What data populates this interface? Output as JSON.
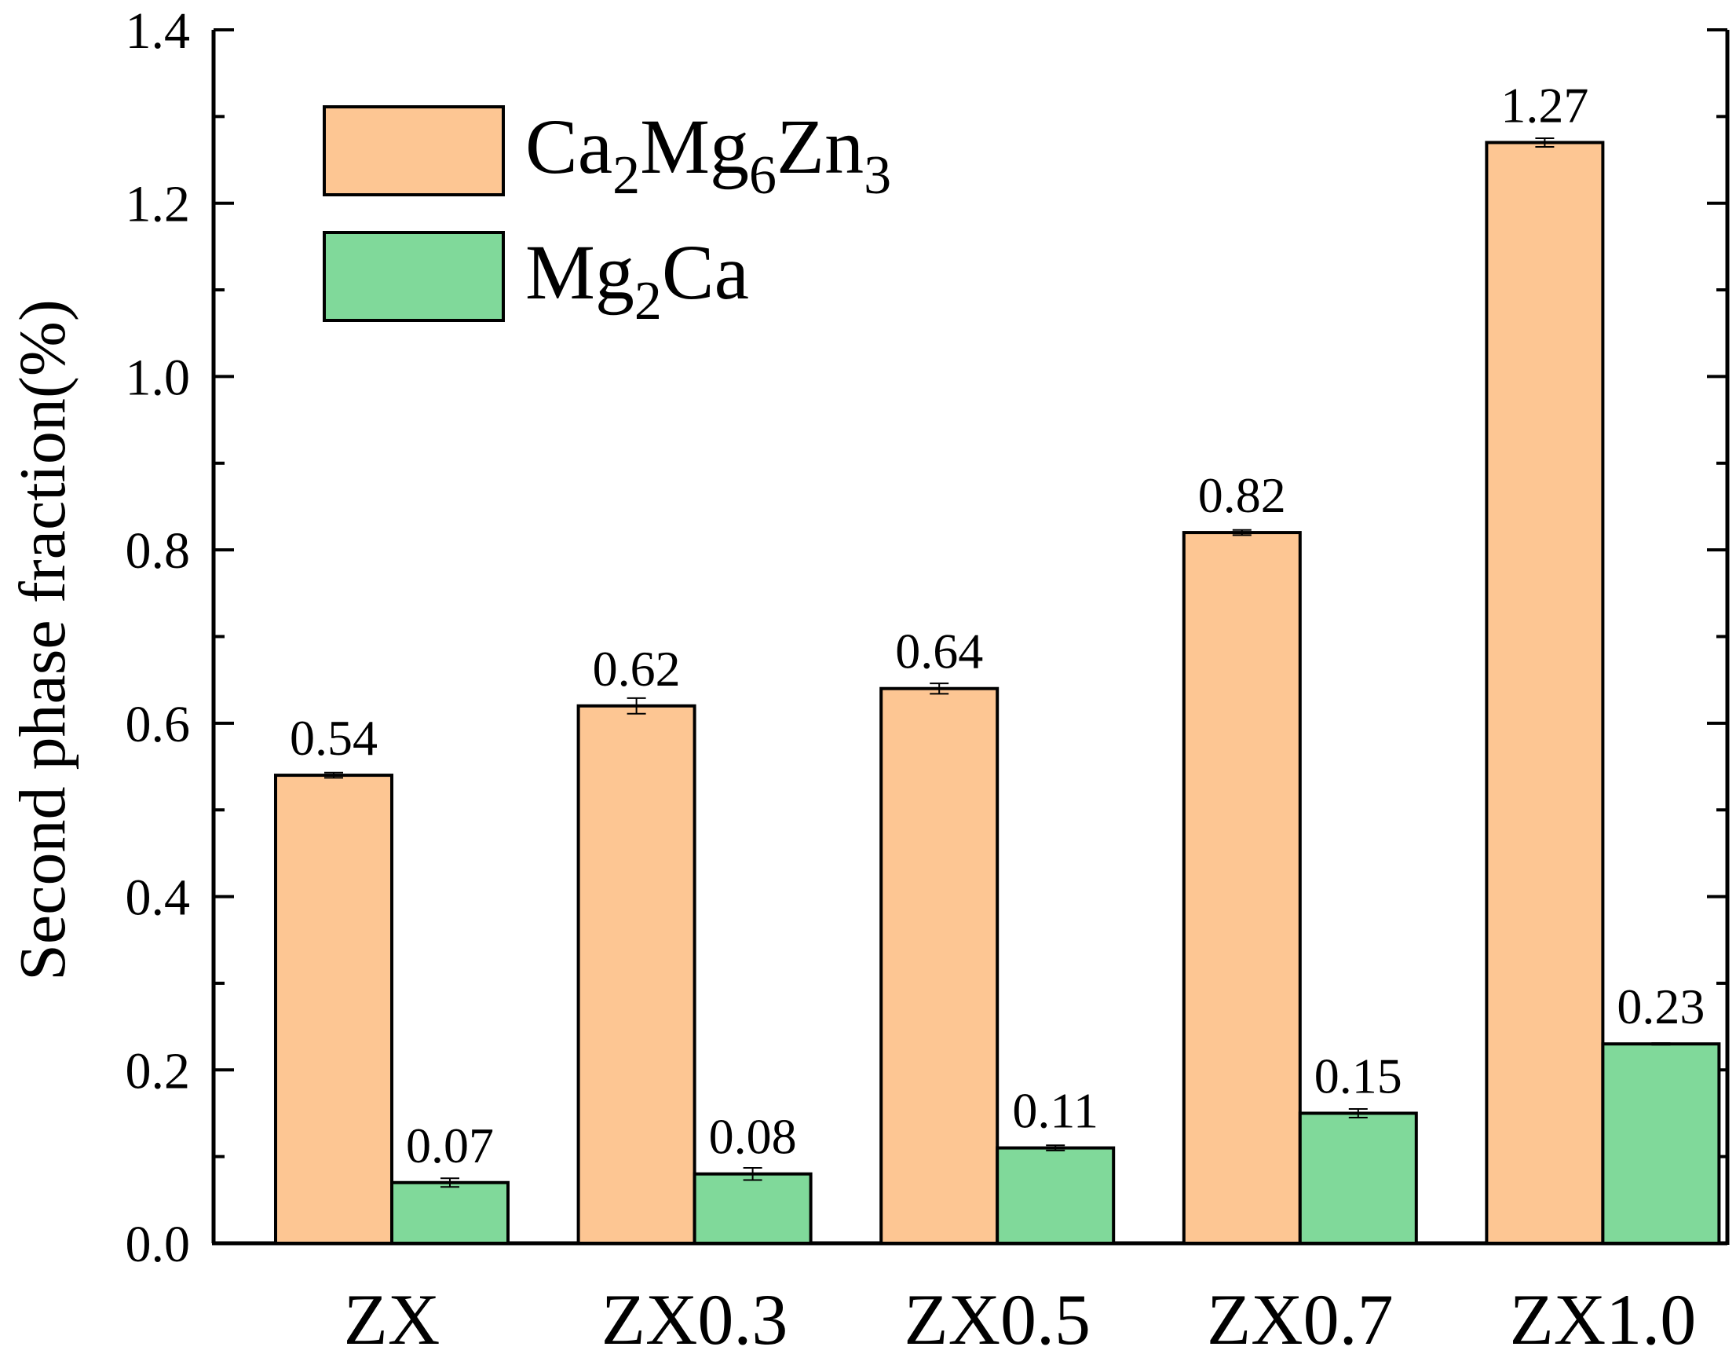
{
  "chart_data": {
    "type": "bar",
    "title": "",
    "xlabel": "",
    "ylabel": "Second phase fraction(%)",
    "ylim": [
      0,
      1.4
    ],
    "yticks": [
      "0.0",
      "0.2",
      "0.4",
      "0.6",
      "0.8",
      "1.0",
      "1.2",
      "1.4"
    ],
    "categories": [
      "ZX",
      "ZX0.3",
      "ZX0.5",
      "ZX0.7",
      "ZX1.0"
    ],
    "legend_position": "top-left",
    "grid": false,
    "series": [
      {
        "name": "Ca2Mg6Zn3",
        "color": "#FDC693",
        "values": [
          0.54,
          0.62,
          0.64,
          0.82,
          1.27
        ],
        "labels": [
          "0.54",
          "0.62",
          "0.64",
          "0.82",
          "1.27"
        ],
        "errors": [
          0.003,
          0.009,
          0.006,
          0.003,
          0.005
        ]
      },
      {
        "name": "Mg2Ca",
        "color": "#80D99A",
        "values": [
          0.07,
          0.08,
          0.11,
          0.15,
          0.23
        ],
        "labels": [
          "0.07",
          "0.08",
          "0.11",
          "0.15",
          "0.23"
        ],
        "errors": [
          0.005,
          0.007,
          0.003,
          0.005,
          0.001
        ]
      }
    ],
    "legend": [
      {
        "parts": [
          [
            "Ca",
            false
          ],
          [
            "2",
            true
          ],
          [
            "Mg",
            false
          ],
          [
            "6",
            true
          ],
          [
            "Zn",
            false
          ],
          [
            "3",
            true
          ]
        ]
      },
      {
        "parts": [
          [
            "Mg",
            false
          ],
          [
            "2",
            true
          ],
          [
            "Ca",
            false
          ]
        ]
      }
    ]
  }
}
